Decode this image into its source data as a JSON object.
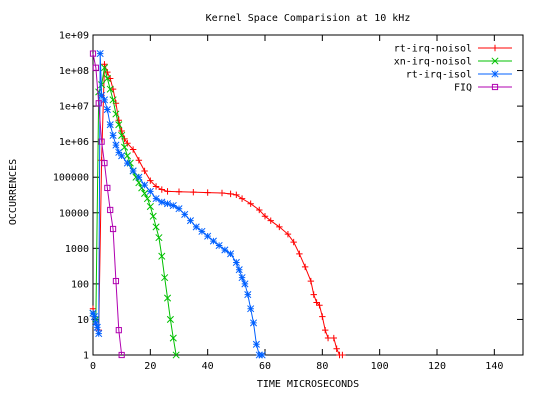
{
  "chart_data": {
    "type": "line",
    "title": "Kernel Space Comparision at 10 kHz",
    "xlabel": "TIME MICROSECONDS",
    "ylabel": "OCCURRENCES",
    "xlim": [
      0,
      150
    ],
    "ylim": [
      1,
      1000000000
    ],
    "yscale": "log",
    "xticks": [
      0,
      20,
      40,
      60,
      80,
      100,
      120,
      140
    ],
    "yticks": [
      {
        "value": 1,
        "label": "1"
      },
      {
        "value": 10,
        "label": "10"
      },
      {
        "value": 100,
        "label": "100"
      },
      {
        "value": 1000,
        "label": "1000"
      },
      {
        "value": 10000,
        "label": "10000"
      },
      {
        "value": 100000,
        "label": "100000"
      },
      {
        "value": 1000000,
        "label": "1e+06"
      },
      {
        "value": 10000000,
        "label": "1e+07"
      },
      {
        "value": 100000000,
        "label": "1e+08"
      },
      {
        "value": 1000000000,
        "label": "1e+09"
      }
    ],
    "grid": false,
    "legend_position": "top-right",
    "series": [
      {
        "name": "rt-irq-noisol",
        "color": "#ff0000",
        "marker": "plus",
        "points": [
          [
            0,
            20
          ],
          [
            0.5,
            12
          ],
          [
            1,
            8
          ],
          [
            2,
            5
          ],
          [
            3,
            300000
          ],
          [
            4,
            150000000
          ],
          [
            5,
            90000000
          ],
          [
            6,
            60000000
          ],
          [
            7,
            30000000
          ],
          [
            8,
            12000000
          ],
          [
            9,
            4000000
          ],
          [
            10,
            2000000
          ],
          [
            11,
            1200000
          ],
          [
            12,
            900000
          ],
          [
            14,
            600000
          ],
          [
            16,
            300000
          ],
          [
            18,
            150000
          ],
          [
            20,
            80000
          ],
          [
            22,
            55000
          ],
          [
            24,
            45000
          ],
          [
            26,
            40000
          ],
          [
            30,
            39000
          ],
          [
            35,
            38000
          ],
          [
            40,
            37000
          ],
          [
            45,
            36000
          ],
          [
            48,
            34000
          ],
          [
            50,
            32000
          ],
          [
            52,
            25000
          ],
          [
            55,
            18000
          ],
          [
            58,
            12000
          ],
          [
            60,
            8000
          ],
          [
            62,
            6000
          ],
          [
            65,
            4000
          ],
          [
            68,
            2500
          ],
          [
            70,
            1500
          ],
          [
            72,
            700
          ],
          [
            74,
            300
          ],
          [
            76,
            120
          ],
          [
            77,
            50
          ],
          [
            78,
            30
          ],
          [
            79,
            25
          ],
          [
            80,
            12
          ],
          [
            81,
            5
          ],
          [
            82,
            3
          ],
          [
            84,
            3
          ],
          [
            85,
            1.5
          ],
          [
            86,
            1
          ],
          [
            87,
            1
          ]
        ]
      },
      {
        "name": "xn-irq-noisol",
        "color": "#00c000",
        "marker": "x",
        "points": [
          [
            0,
            15
          ],
          [
            1,
            10
          ],
          [
            2,
            25000000
          ],
          [
            3,
            40000000
          ],
          [
            4,
            120000000
          ],
          [
            5,
            60000000
          ],
          [
            6,
            30000000
          ],
          [
            7,
            15000000
          ],
          [
            8,
            6000000
          ],
          [
            9,
            3000000
          ],
          [
            10,
            1500000
          ],
          [
            11,
            700000
          ],
          [
            12,
            400000
          ],
          [
            13,
            250000
          ],
          [
            14,
            150000
          ],
          [
            15,
            100000
          ],
          [
            16,
            70000
          ],
          [
            17,
            50000
          ],
          [
            18,
            35000
          ],
          [
            19,
            25000
          ],
          [
            20,
            15000
          ],
          [
            21,
            8000
          ],
          [
            22,
            4000
          ],
          [
            23,
            2000
          ],
          [
            24,
            600
          ],
          [
            25,
            150
          ],
          [
            26,
            40
          ],
          [
            27,
            10
          ],
          [
            28,
            3
          ],
          [
            29,
            1
          ]
        ]
      },
      {
        "name": "rt-irq-isol",
        "color": "#0060ff",
        "marker": "star",
        "points": [
          [
            0,
            15
          ],
          [
            0.5,
            12
          ],
          [
            1,
            8
          ],
          [
            1.5,
            6
          ],
          [
            2,
            4
          ],
          [
            2.5,
            300000000
          ],
          [
            3,
            20000000
          ],
          [
            4,
            15000000
          ],
          [
            5,
            8000000
          ],
          [
            6,
            3000000
          ],
          [
            7,
            1500000
          ],
          [
            8,
            800000
          ],
          [
            9,
            500000
          ],
          [
            10,
            400000
          ],
          [
            12,
            250000
          ],
          [
            14,
            150000
          ],
          [
            16,
            100000
          ],
          [
            18,
            60000
          ],
          [
            20,
            40000
          ],
          [
            22,
            25000
          ],
          [
            24,
            20000
          ],
          [
            26,
            18000
          ],
          [
            28,
            16000
          ],
          [
            30,
            13000
          ],
          [
            32,
            9000
          ],
          [
            34,
            6000
          ],
          [
            36,
            4000
          ],
          [
            38,
            3000
          ],
          [
            40,
            2200
          ],
          [
            42,
            1600
          ],
          [
            44,
            1200
          ],
          [
            46,
            900
          ],
          [
            48,
            700
          ],
          [
            50,
            400
          ],
          [
            51,
            250
          ],
          [
            52,
            150
          ],
          [
            53,
            100
          ],
          [
            54,
            50
          ],
          [
            55,
            20
          ],
          [
            56,
            8
          ],
          [
            57,
            2
          ],
          [
            58,
            1
          ],
          [
            59,
            1
          ]
        ]
      },
      {
        "name": "FIQ",
        "color": "#b000b0",
        "marker": "square",
        "points": [
          [
            0,
            300000000
          ],
          [
            1,
            120000000
          ],
          [
            2,
            12000000
          ],
          [
            3,
            1000000
          ],
          [
            4,
            250000
          ],
          [
            5,
            50000
          ],
          [
            6,
            12000
          ],
          [
            7,
            3500
          ],
          [
            8,
            120
          ],
          [
            9,
            5
          ],
          [
            10,
            1
          ]
        ]
      }
    ]
  }
}
